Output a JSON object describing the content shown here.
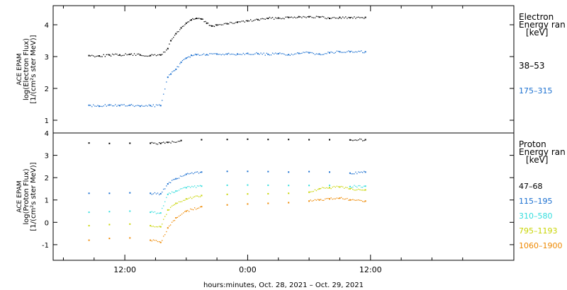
{
  "chart_data": [
    {
      "type": "scatter",
      "panel": "electron",
      "ylabel_lines": [
        "ACE EPAM",
        "log(Electron Flux)",
        "[1/(cm²s ster MeV)]"
      ],
      "yticks": [
        "1",
        "2",
        "3",
        "4"
      ],
      "ylim": [
        0.6,
        4.6
      ],
      "legend_title": [
        "Electron",
        "Energy ran",
        "[keV]"
      ],
      "series": [
        {
          "name": "38–53",
          "color": "#000000",
          "points": [
            [
              -15.5,
              3.03
            ],
            [
              -14.5,
              3.02
            ],
            [
              -13.5,
              3.05
            ],
            [
              -12.5,
              3.05
            ],
            [
              -11.5,
              3.07
            ],
            [
              -10.5,
              3.05
            ],
            [
              -9.5,
              3.03
            ],
            [
              -8.5,
              3.05
            ],
            [
              -7.8,
              3.25
            ],
            [
              -7.5,
              3.5
            ],
            [
              -7.0,
              3.72
            ],
            [
              -6.5,
              3.9
            ],
            [
              -6.0,
              4.05
            ],
            [
              -5.5,
              4.15
            ],
            [
              -5.0,
              4.2
            ],
            [
              -4.5,
              4.18
            ],
            [
              -4.0,
              4.05
            ],
            [
              -3.5,
              3.96
            ],
            [
              -3.0,
              3.99
            ],
            [
              -2.0,
              4.03
            ],
            [
              -1.0,
              4.08
            ],
            [
              0,
              4.12
            ],
            [
              1,
              4.16
            ],
            [
              2,
              4.2
            ],
            [
              3,
              4.21
            ],
            [
              4,
              4.23
            ],
            [
              5,
              4.25
            ],
            [
              6,
              4.25
            ],
            [
              7,
              4.24
            ],
            [
              8,
              4.2
            ],
            [
              9,
              4.23
            ],
            [
              10,
              4.22
            ],
            [
              11.5,
              4.23
            ]
          ]
        },
        {
          "name": "175–315",
          "color": "#1a6fd0",
          "points": [
            [
              -15.5,
              1.47
            ],
            [
              -14.5,
              1.44
            ],
            [
              -13.5,
              1.48
            ],
            [
              -12.5,
              1.46
            ],
            [
              -11.5,
              1.47
            ],
            [
              -10.5,
              1.44
            ],
            [
              -9.5,
              1.46
            ],
            [
              -8.5,
              1.46
            ],
            [
              -7.8,
              2.35
            ],
            [
              -7.5,
              2.45
            ],
            [
              -7.0,
              2.6
            ],
            [
              -6.5,
              2.82
            ],
            [
              -6.0,
              2.95
            ],
            [
              -5.5,
              3.04
            ],
            [
              -5.0,
              3.06
            ],
            [
              -4.0,
              3.06
            ],
            [
              -3.0,
              3.08
            ],
            [
              -2.0,
              3.08
            ],
            [
              -1.0,
              3.08
            ],
            [
              0,
              3.1
            ],
            [
              1,
              3.09
            ],
            [
              2,
              3.07
            ],
            [
              3,
              3.09
            ],
            [
              4,
              3.06
            ],
            [
              5,
              3.1
            ],
            [
              6,
              3.12
            ],
            [
              7,
              3.08
            ],
            [
              8,
              3.12
            ],
            [
              9,
              3.15
            ],
            [
              10,
              3.15
            ],
            [
              11.5,
              3.15
            ]
          ]
        }
      ]
    },
    {
      "type": "scatter",
      "panel": "proton",
      "ylabel_lines": [
        "ACE EPAM",
        "log(Proton Flux)",
        "[1/(cm²s ster MeV)]"
      ],
      "yticks": [
        "-1",
        "0",
        "1",
        "2",
        "3",
        "4"
      ],
      "ylim": [
        -1.7,
        4.0
      ],
      "legend_title": [
        "Proton",
        "Energy ran",
        "[keV]"
      ],
      "series": [
        {
          "name": "47–68",
          "color": "#000000",
          "points": [
            [
              -15.5,
              3.55
            ],
            [
              -13.5,
              3.53
            ],
            [
              -11.5,
              3.54
            ],
            [
              -9.5,
              3.54
            ],
            [
              -8.5,
              3.53
            ],
            [
              -7.8,
              3.58
            ],
            [
              -6.5,
              3.66
            ],
            [
              -4.5,
              3.7
            ],
            [
              -2,
              3.71
            ],
            [
              0,
              3.72
            ],
            [
              2,
              3.71
            ],
            [
              4,
              3.71
            ],
            [
              6,
              3.7
            ],
            [
              8,
              3.7
            ],
            [
              10,
              3.69
            ],
            [
              11.5,
              3.7
            ]
          ]
        },
        {
          "name": "115–195",
          "color": "#1a6fd0",
          "points": [
            [
              -15.5,
              1.3
            ],
            [
              -13.5,
              1.3
            ],
            [
              -11.5,
              1.32
            ],
            [
              -9.5,
              1.3
            ],
            [
              -8.5,
              1.28
            ],
            [
              -7.8,
              1.72
            ],
            [
              -7.0,
              1.95
            ],
            [
              -6.0,
              2.15
            ],
            [
              -4.5,
              2.25
            ],
            [
              -2.0,
              2.28
            ],
            [
              0,
              2.28
            ],
            [
              2,
              2.27
            ],
            [
              4,
              2.25
            ],
            [
              6,
              2.27
            ],
            [
              8,
              2.25
            ],
            [
              10,
              2.2
            ],
            [
              11.5,
              2.25
            ]
          ]
        },
        {
          "name": "310–580",
          "color": "#33dddd",
          "points": [
            [
              -15.5,
              0.45
            ],
            [
              -13.5,
              0.48
            ],
            [
              -11.5,
              0.5
            ],
            [
              -9.5,
              0.45
            ],
            [
              -8.5,
              0.42
            ],
            [
              -7.8,
              1.25
            ],
            [
              -7.0,
              1.4
            ],
            [
              -6.0,
              1.55
            ],
            [
              -4.5,
              1.62
            ],
            [
              -2.0,
              1.66
            ],
            [
              0,
              1.67
            ],
            [
              2,
              1.66
            ],
            [
              4,
              1.65
            ],
            [
              6,
              1.65
            ],
            [
              8,
              1.65
            ],
            [
              10,
              1.6
            ],
            [
              11.5,
              1.62
            ]
          ]
        },
        {
          "name": "795–1193",
          "color": "#c8d400",
          "points": [
            [
              -15.5,
              -0.15
            ],
            [
              -13.5,
              -0.1
            ],
            [
              -11.5,
              -0.08
            ],
            [
              -9.5,
              -0.15
            ],
            [
              -8.5,
              -0.2
            ],
            [
              -7.8,
              0.55
            ],
            [
              -7.0,
              0.85
            ],
            [
              -6.0,
              1.05
            ],
            [
              -4.5,
              1.2
            ],
            [
              -2.0,
              1.25
            ],
            [
              0,
              1.27
            ],
            [
              2,
              1.28
            ],
            [
              4,
              1.3
            ],
            [
              6,
              1.35
            ],
            [
              7,
              1.5
            ],
            [
              8,
              1.55
            ],
            [
              9,
              1.58
            ],
            [
              10,
              1.5
            ],
            [
              11.5,
              1.45
            ]
          ]
        },
        {
          "name": "1060–1900",
          "color": "#ee8800",
          "points": [
            [
              -15.5,
              -0.8
            ],
            [
              -13.5,
              -0.72
            ],
            [
              -11.5,
              -0.7
            ],
            [
              -9.5,
              -0.8
            ],
            [
              -8.5,
              -0.9
            ],
            [
              -7.8,
              -0.25
            ],
            [
              -7.0,
              0.2
            ],
            [
              -6.0,
              0.5
            ],
            [
              -4.5,
              0.7
            ],
            [
              -2.0,
              0.78
            ],
            [
              0,
              0.82
            ],
            [
              2,
              0.85
            ],
            [
              4,
              0.88
            ],
            [
              6,
              0.95
            ],
            [
              7,
              1.0
            ],
            [
              8,
              1.05
            ],
            [
              9,
              1.08
            ],
            [
              10,
              1.0
            ],
            [
              11.5,
              0.95
            ]
          ]
        }
      ]
    }
  ],
  "xaxis": {
    "label": "hours:minutes, Oct. 28, 2021 – Oct. 29, 2021",
    "range": [
      -19,
      26
    ],
    "ticks": [
      {
        "value": -12,
        "label": "12:00"
      },
      {
        "value": 0,
        "label": "0:00"
      },
      {
        "value": 12,
        "label": "12:00"
      }
    ]
  }
}
